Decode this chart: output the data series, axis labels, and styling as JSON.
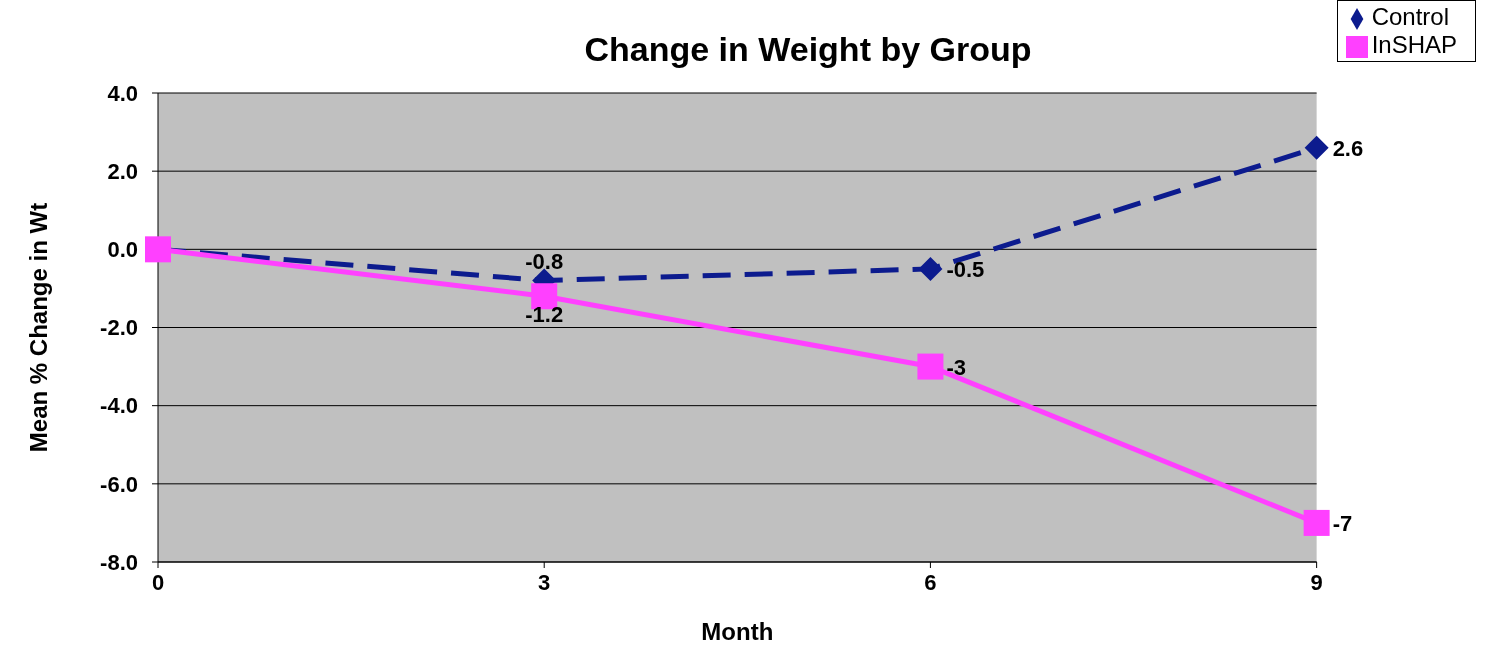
{
  "chart_data": {
    "type": "line",
    "title": "Change in Weight by Group",
    "xlabel": "Month",
    "ylabel": "Mean % Change in Wt",
    "x": [
      0,
      3,
      6,
      9
    ],
    "series": [
      {
        "name": "Control",
        "color": "#0c1b8e",
        "values": [
          0,
          -0.8,
          -0.5,
          2.6
        ],
        "marker": "diamond",
        "line_style": "dashed",
        "value_labels": [
          null,
          "-0.8",
          "-0.5",
          "2.6"
        ]
      },
      {
        "name": "InSHAP",
        "color": "#ff40ff",
        "values": [
          0,
          -1.2,
          -3,
          -7
        ],
        "marker": "square",
        "line_style": "solid",
        "value_labels": [
          null,
          "-1.2",
          "-3",
          "-7"
        ]
      }
    ],
    "xlim": [
      0,
      9
    ],
    "xticks": [
      0,
      3,
      6,
      9
    ],
    "ylim": [
      -8,
      4
    ],
    "yticks": [
      {
        "value": -8,
        "label": "-8.0"
      },
      {
        "value": -6,
        "label": "-6.0"
      },
      {
        "value": -4,
        "label": "-4.0"
      },
      {
        "value": -2,
        "label": "-2.0"
      },
      {
        "value": 0,
        "label": "0.0"
      },
      {
        "value": 2,
        "label": "2.0"
      },
      {
        "value": 4,
        "label": "4.0"
      }
    ],
    "grid": "y",
    "legend": "top right"
  }
}
